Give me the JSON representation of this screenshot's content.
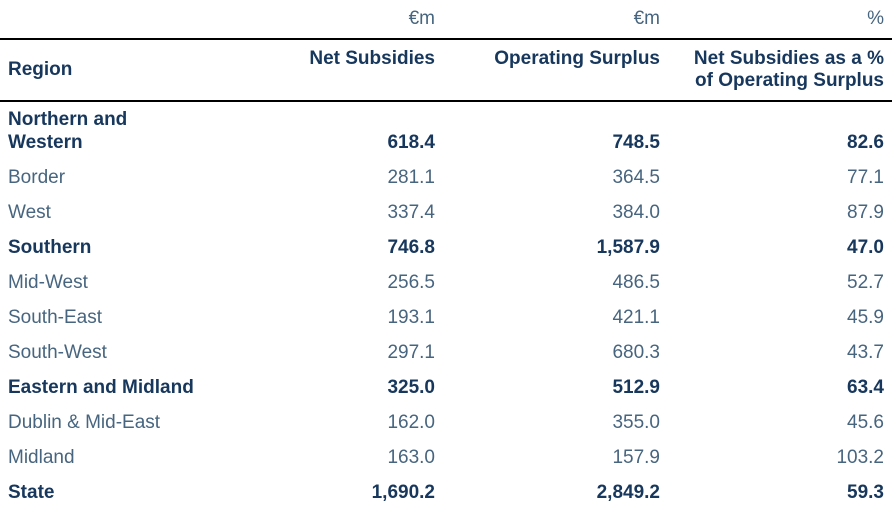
{
  "table": {
    "units": {
      "net_subsidies": "€m",
      "operating_surplus": "€m",
      "pct": "%"
    },
    "header": {
      "region": "Region",
      "net_subsidies": "Net Subsidies",
      "operating_surplus": "Operating Surplus",
      "pct": "Net Subsidies as a %\nof Operating Surplus"
    },
    "rows": [
      {
        "region": "Northern and\nWestern",
        "net_subsidies": "618.4",
        "operating_surplus": "748.5",
        "pct": "82.6"
      },
      {
        "region": "Border",
        "net_subsidies": "281.1",
        "operating_surplus": "364.5",
        "pct": "77.1"
      },
      {
        "region": "West",
        "net_subsidies": "337.4",
        "operating_surplus": "384.0",
        "pct": "87.9"
      },
      {
        "region": "Southern",
        "net_subsidies": "746.8",
        "operating_surplus": "1,587.9",
        "pct": "47.0"
      },
      {
        "region": "Mid-West",
        "net_subsidies": "256.5",
        "operating_surplus": "486.5",
        "pct": "52.7"
      },
      {
        "region": "South-East",
        "net_subsidies": "193.1",
        "operating_surplus": "421.1",
        "pct": "45.9"
      },
      {
        "region": "South-West",
        "net_subsidies": "297.1",
        "operating_surplus": "680.3",
        "pct": "43.7"
      },
      {
        "region": "Eastern and Midland",
        "net_subsidies": "325.0",
        "operating_surplus": "512.9",
        "pct": "63.4"
      },
      {
        "region": "Dublin & Mid-East",
        "net_subsidies": "162.0",
        "operating_surplus": "355.0",
        "pct": "45.6"
      },
      {
        "region": "Midland",
        "net_subsidies": "163.0",
        "operating_surplus": "157.9",
        "pct": "103.2"
      },
      {
        "region": "State",
        "net_subsidies": "1,690.2",
        "operating_surplus": "2,849.2",
        "pct": "59.3"
      }
    ]
  },
  "colors": {
    "emphasis_text": "#17375c",
    "regular_text": "#47657f",
    "rule": "#000000",
    "background": "#ffffff"
  },
  "chart_data": {
    "type": "table",
    "title": "",
    "unit_row": [
      "",
      "€m",
      "€m",
      "%"
    ],
    "columns": [
      "Region",
      "Net Subsidies",
      "Operating Surplus",
      "Net Subsidies as a % of Operating Surplus"
    ],
    "rows": [
      {
        "region": "Northern and Western",
        "net_subsidies": 618.4,
        "operating_surplus": 748.5,
        "pct_of_surplus": 82.6,
        "emphasis": true
      },
      {
        "region": "Border",
        "net_subsidies": 281.1,
        "operating_surplus": 364.5,
        "pct_of_surplus": 77.1,
        "emphasis": false
      },
      {
        "region": "West",
        "net_subsidies": 337.4,
        "operating_surplus": 384.0,
        "pct_of_surplus": 87.9,
        "emphasis": false
      },
      {
        "region": "Southern",
        "net_subsidies": 746.8,
        "operating_surplus": 1587.9,
        "pct_of_surplus": 47.0,
        "emphasis": true
      },
      {
        "region": "Mid-West",
        "net_subsidies": 256.5,
        "operating_surplus": 486.5,
        "pct_of_surplus": 52.7,
        "emphasis": false
      },
      {
        "region": "South-East",
        "net_subsidies": 193.1,
        "operating_surplus": 421.1,
        "pct_of_surplus": 45.9,
        "emphasis": false
      },
      {
        "region": "South-West",
        "net_subsidies": 297.1,
        "operating_surplus": 680.3,
        "pct_of_surplus": 43.7,
        "emphasis": false
      },
      {
        "region": "Eastern and Midland",
        "net_subsidies": 325.0,
        "operating_surplus": 512.9,
        "pct_of_surplus": 63.4,
        "emphasis": true
      },
      {
        "region": "Dublin & Mid-East",
        "net_subsidies": 162.0,
        "operating_surplus": 355.0,
        "pct_of_surplus": 45.6,
        "emphasis": false
      },
      {
        "region": "Midland",
        "net_subsidies": 163.0,
        "operating_surplus": 157.9,
        "pct_of_surplus": 103.2,
        "emphasis": false
      },
      {
        "region": "State",
        "net_subsidies": 1690.2,
        "operating_surplus": 2849.2,
        "pct_of_surplus": 59.3,
        "emphasis": true
      }
    ]
  }
}
